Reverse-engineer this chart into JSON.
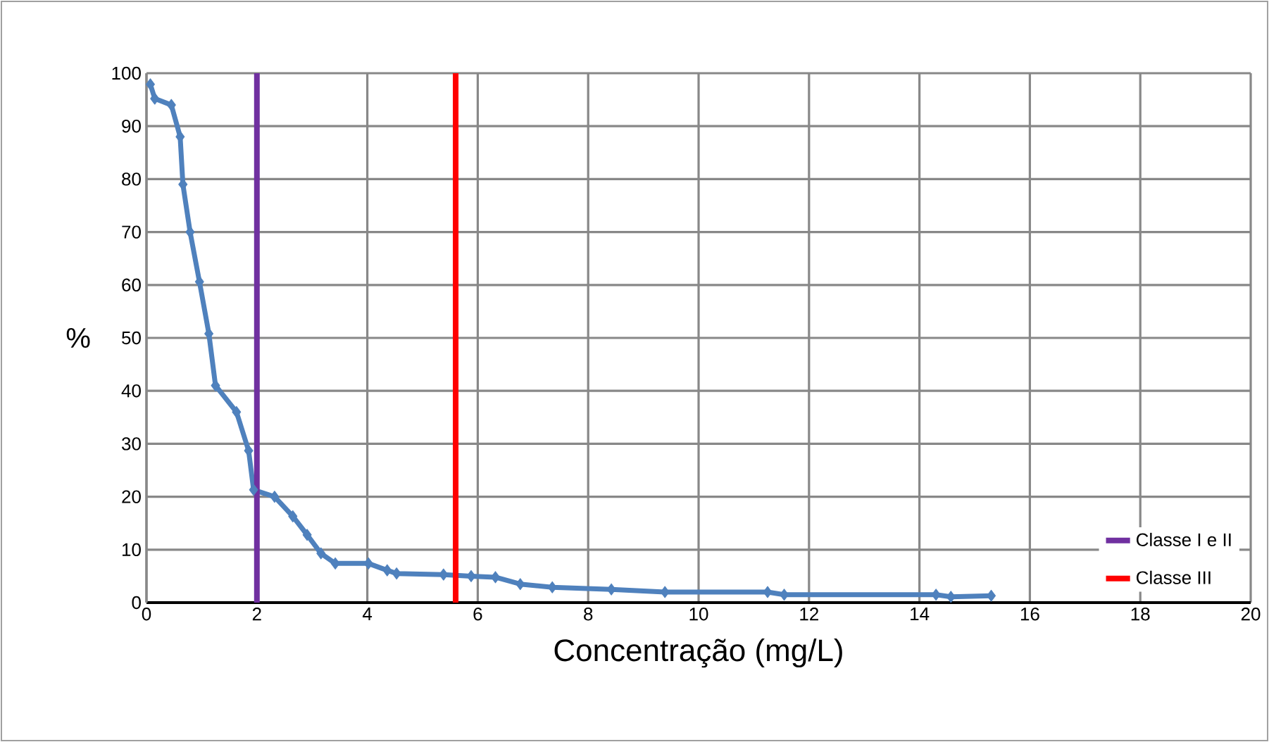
{
  "chart_data": {
    "type": "line",
    "xlabel": "Concentração (mg/L)",
    "ylabel": "%",
    "xlim": [
      0,
      20
    ],
    "xticks": [
      0,
      2,
      4,
      6,
      8,
      10,
      12,
      14,
      16,
      18,
      20
    ],
    "ylim": [
      0,
      100
    ],
    "yticks": [
      0,
      10,
      20,
      30,
      40,
      50,
      60,
      70,
      80,
      90,
      100
    ],
    "grid": true,
    "legend": "bottom right",
    "series": [
      {
        "color": "#4f81bd",
        "marker": "diamond",
        "x": [
          0.07,
          0.15,
          0.45,
          0.61,
          0.66,
          0.79,
          0.96,
          1.13,
          1.25,
          1.63,
          1.85,
          1.94,
          2.32,
          2.65,
          2.91,
          3.16,
          3.42,
          4.02,
          4.36,
          4.53,
          5.38,
          5.88,
          6.32,
          6.77,
          7.35,
          8.42,
          9.39,
          11.25,
          11.55,
          14.3,
          14.57,
          15.3
        ],
        "values": [
          97.9,
          95.2,
          94,
          88,
          79,
          70,
          60.6,
          50.8,
          41,
          36,
          28.7,
          21.3,
          20,
          16.3,
          12.8,
          9.3,
          7.4,
          7.4,
          6.1,
          5.5,
          5.3,
          5.0,
          4.8,
          3.5,
          2.9,
          2.5,
          2.0,
          2.0,
          1.5,
          1.5,
          1.1,
          1.3
        ]
      },
      {
        "name": "Classe I e II",
        "color": "#7030a0",
        "marker": "none",
        "x": [
          2,
          2
        ],
        "values": [
          0,
          100
        ]
      },
      {
        "name": "Classe III",
        "color": "#ff0000",
        "marker": "none",
        "x": [
          5.6,
          5.6
        ],
        "values": [
          0,
          100
        ]
      }
    ]
  }
}
